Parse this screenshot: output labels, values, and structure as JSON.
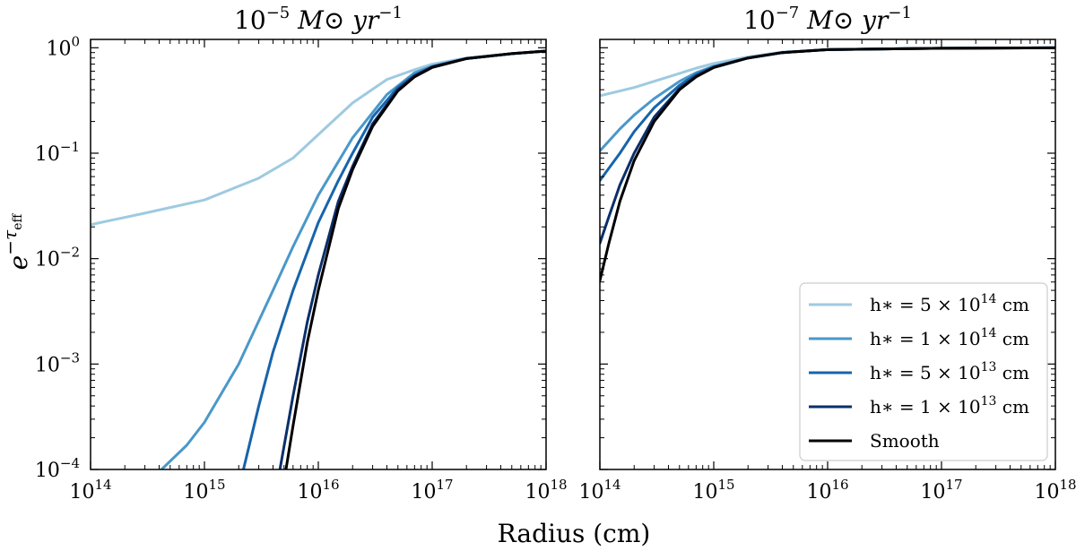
{
  "chart_data": {
    "type": "line",
    "xlabel": "Radius (cm)",
    "ylabel_base": "e",
    "ylabel_exp": "−τ",
    "ylabel_sub": "eff",
    "x_scale": "log",
    "y_scale": "log",
    "xlim": [
      100000000000000.0,
      1e+18
    ],
    "ylim": [
      0.0001,
      1.2
    ],
    "x_ticks": [
      {
        "base": "10",
        "exp": "14",
        "value": 100000000000000.0
      },
      {
        "base": "10",
        "exp": "15",
        "value": 1000000000000000.0
      },
      {
        "base": "10",
        "exp": "16",
        "value": 1e+16
      },
      {
        "base": "10",
        "exp": "17",
        "value": 1e+17
      },
      {
        "base": "10",
        "exp": "18",
        "value": 1e+18
      }
    ],
    "y_ticks": [
      {
        "base": "10",
        "exp": "−4",
        "value": 0.0001
      },
      {
        "base": "10",
        "exp": "−3",
        "value": 0.001
      },
      {
        "base": "10",
        "exp": "−2",
        "value": 0.01
      },
      {
        "base": "10",
        "exp": "−1",
        "value": 0.1
      },
      {
        "base": "10",
        "exp": "0",
        "value": 1
      }
    ],
    "legend": {
      "location": "lower-right",
      "entries": [
        {
          "label": "h∗ = 5 × 10",
          "exp": "14",
          "unit": " cm",
          "color": "#9ecae1"
        },
        {
          "label": "h∗ = 1 × 10",
          "exp": "14",
          "unit": " cm",
          "color": "#4a98c9"
        },
        {
          "label": "h∗ = 5 × 10",
          "exp": "13",
          "unit": " cm",
          "color": "#1764ab"
        },
        {
          "label": "h∗ = 1 × 10",
          "exp": "13",
          "unit": " cm",
          "color": "#0a2f6b"
        },
        {
          "label": "Smooth",
          "exp": "",
          "unit": "",
          "color": "#000000"
        }
      ]
    },
    "panels": [
      {
        "title_base": "10",
        "title_exp": "−5",
        "title_rest": " M⊙ yr",
        "title_exp2": "−1",
        "series": [
          {
            "name": "h* = 5e14 cm",
            "color": "#9ecae1",
            "x": [
              100000000000000.0,
              300000000000000.0,
              1000000000000000.0,
              3000000000000000.0,
              6000000000000000.0,
              1e+16,
              2e+16,
              4e+16,
              7e+16,
              1e+17,
              2e+17,
              5e+17,
              1e+18
            ],
            "y": [
              0.021,
              0.027,
              0.036,
              0.058,
              0.09,
              0.15,
              0.3,
              0.5,
              0.62,
              0.7,
              0.8,
              0.88,
              0.93
            ]
          },
          {
            "name": "h* = 1e14 cm",
            "color": "#4a98c9",
            "x": [
              420000000000000.0,
              700000000000000.0,
              1000000000000000.0,
              2000000000000000.0,
              4000000000000000.0,
              6000000000000000.0,
              1e+16,
              2e+16,
              4e+16,
              7e+16,
              1e+17,
              2e+17,
              5e+17,
              1e+18
            ],
            "y": [
              0.0001,
              0.00017,
              0.00028,
              0.001,
              0.005,
              0.013,
              0.04,
              0.14,
              0.36,
              0.58,
              0.67,
              0.79,
              0.88,
              0.93
            ]
          },
          {
            "name": "h* = 5e13 cm",
            "color": "#1764ab",
            "x": [
              2200000000000000.0,
              3000000000000000.0,
              4000000000000000.0,
              6000000000000000.0,
              1e+16,
              1.5e+16,
              2e+16,
              3e+16,
              5e+16,
              7e+16,
              1e+17,
              2e+17,
              5e+17,
              1e+18
            ],
            "y": [
              0.0001,
              0.0004,
              0.0013,
              0.005,
              0.022,
              0.055,
              0.1,
              0.22,
              0.42,
              0.55,
              0.66,
              0.79,
              0.88,
              0.93
            ]
          },
          {
            "name": "h* = 1e13 cm",
            "color": "#0a2f6b",
            "x": [
              4600000000000000.0,
              6000000000000000.0,
              8000000000000000.0,
              1e+16,
              1.5e+16,
              2e+16,
              3e+16,
              5e+16,
              7e+16,
              1e+17,
              2e+17,
              5e+17,
              1e+18
            ],
            "y": [
              0.0001,
              0.0005,
              0.0025,
              0.007,
              0.035,
              0.075,
              0.19,
              0.4,
              0.54,
              0.66,
              0.79,
              0.88,
              0.93
            ]
          },
          {
            "name": "Smooth",
            "color": "#000000",
            "x": [
              5200000000000000.0,
              6000000000000000.0,
              8000000000000000.0,
              1e+16,
              1.5e+16,
              2e+16,
              3e+16,
              5e+16,
              7e+16,
              1e+17,
              2e+17,
              5e+17,
              1e+18
            ],
            "y": [
              0.0001,
              0.00026,
              0.0016,
              0.005,
              0.03,
              0.07,
              0.18,
              0.39,
              0.53,
              0.65,
              0.79,
              0.88,
              0.93
            ]
          }
        ]
      },
      {
        "title_base": "10",
        "title_exp": "−7",
        "title_rest": " M⊙ yr",
        "title_exp2": "−1",
        "series": [
          {
            "name": "h* = 5e14 cm",
            "color": "#9ecae1",
            "x": [
              100000000000000.0,
              200000000000000.0,
              400000000000000.0,
              700000000000000.0,
              1000000000000000.0,
              2000000000000000.0,
              4000000000000000.0,
              1e+16,
              1e+17,
              1e+18
            ],
            "y": [
              0.35,
              0.42,
              0.53,
              0.64,
              0.71,
              0.82,
              0.91,
              0.96,
              0.99,
              1.0
            ]
          },
          {
            "name": "h* = 1e14 cm",
            "color": "#4a98c9",
            "x": [
              100000000000000.0,
              150000000000000.0,
              200000000000000.0,
              300000000000000.0,
              500000000000000.0,
              700000000000000.0,
              1000000000000000.0,
              2000000000000000.0,
              4000000000000000.0,
              1e+16,
              1e+17,
              1e+18
            ],
            "y": [
              0.105,
              0.17,
              0.23,
              0.33,
              0.48,
              0.58,
              0.67,
              0.8,
              0.9,
              0.96,
              0.99,
              1.0
            ]
          },
          {
            "name": "h* = 5e13 cm",
            "color": "#1764ab",
            "x": [
              100000000000000.0,
              150000000000000.0,
              200000000000000.0,
              300000000000000.0,
              500000000000000.0,
              700000000000000.0,
              1000000000000000.0,
              2000000000000000.0,
              4000000000000000.0,
              1e+16,
              1e+17,
              1e+18
            ],
            "y": [
              0.055,
              0.1,
              0.16,
              0.27,
              0.44,
              0.56,
              0.66,
              0.8,
              0.9,
              0.96,
              0.99,
              1.0
            ]
          },
          {
            "name": "h* = 1e13 cm",
            "color": "#0a2f6b",
            "x": [
              100000000000000.0,
              120000000000000.0,
              150000000000000.0,
              200000000000000.0,
              300000000000000.0,
              500000000000000.0,
              700000000000000.0,
              1000000000000000.0,
              2000000000000000.0,
              4000000000000000.0,
              1e+16,
              1e+17,
              1e+18
            ],
            "y": [
              0.014,
              0.025,
              0.05,
              0.1,
              0.22,
              0.41,
              0.54,
              0.65,
              0.8,
              0.9,
              0.96,
              0.99,
              1.0
            ]
          },
          {
            "name": "Smooth",
            "color": "#000000",
            "x": [
              100000000000000.0,
              120000000000000.0,
              150000000000000.0,
              200000000000000.0,
              300000000000000.0,
              500000000000000.0,
              700000000000000.0,
              1000000000000000.0,
              2000000000000000.0,
              4000000000000000.0,
              1e+16,
              1e+17,
              1e+18
            ],
            "y": [
              0.0062,
              0.014,
              0.035,
              0.085,
              0.2,
              0.4,
              0.53,
              0.65,
              0.8,
              0.9,
              0.96,
              0.99,
              1.0
            ]
          }
        ]
      }
    ]
  }
}
